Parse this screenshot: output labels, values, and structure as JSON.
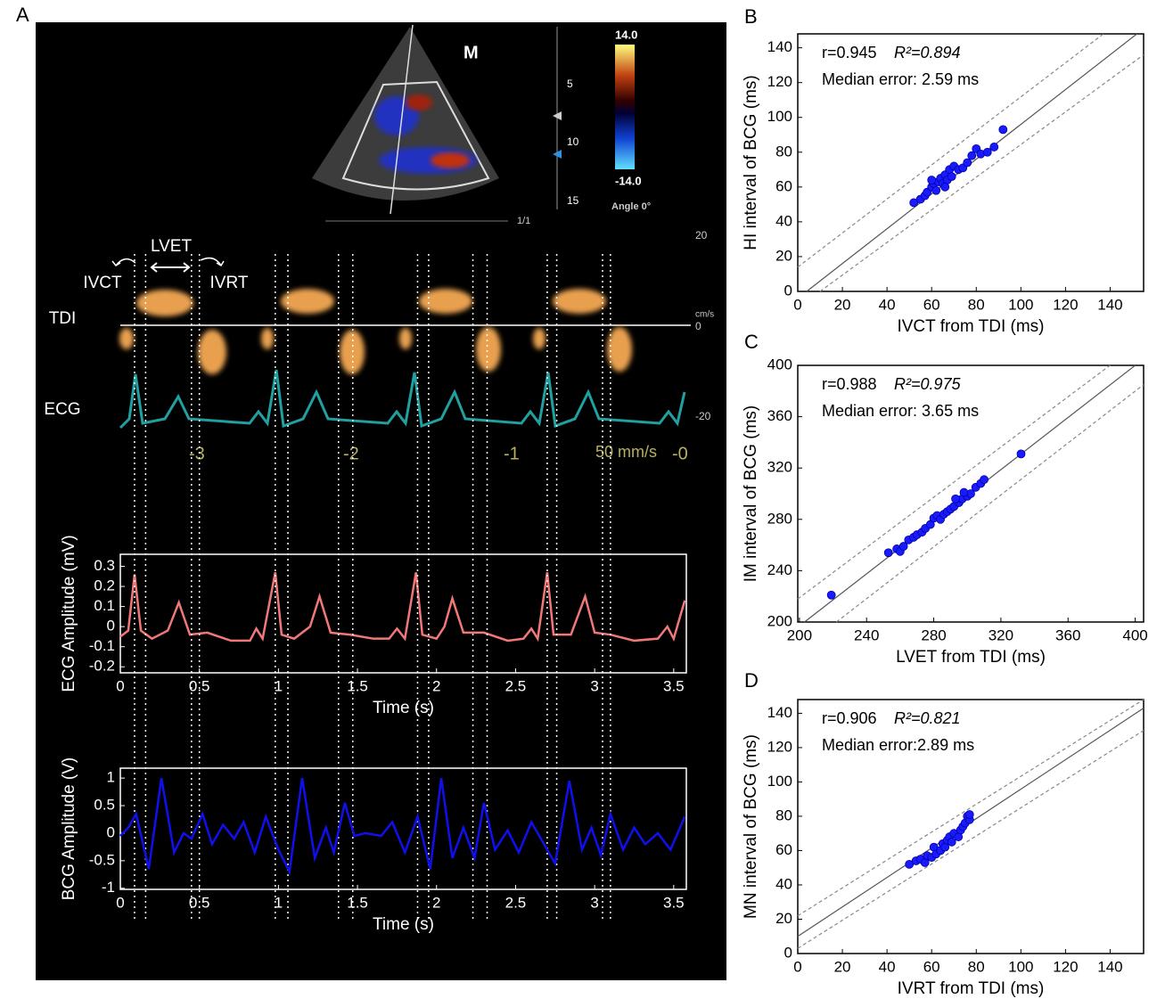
{
  "panel_labels": {
    "a": "A",
    "b": "B",
    "c": "C",
    "d": "D"
  },
  "panel_a_image": {
    "scale_top": "14.0",
    "scale_bottom": "-14.0",
    "angle": "Angle 0°",
    "logo": "M",
    "depth_ticks": [
      "5",
      "10",
      "15"
    ],
    "page": "1/1",
    "velocity_ticks": [
      "20",
      "0",
      "-20"
    ],
    "velocity_unit": "cm/s",
    "time_ticks": [
      "-3",
      "-2",
      "-1"
    ],
    "speed": "50 mm/s",
    "time_zero": "-0",
    "labels": {
      "lvet": "LVET",
      "ivct": "IVCT",
      "ivrt": "IVRT",
      "tdi": "TDI",
      "ecg": "ECG"
    }
  },
  "chart_data": [
    {
      "type": "line",
      "xlabel": "Time (s)",
      "ylabel": "ECG Amplitude (mV)",
      "xlim": [
        0,
        3.58
      ],
      "ylim": [
        -0.23,
        0.36
      ],
      "xticks": [
        0,
        0.5,
        1,
        1.5,
        2,
        2.5,
        3,
        3.5
      ],
      "yticks": [
        -0.2,
        -0.1,
        0,
        0.1,
        0.2,
        0.3
      ],
      "event_times": [
        0.09,
        0.16,
        0.45,
        0.5,
        0.98,
        1.06,
        1.38,
        1.47,
        1.88,
        1.95,
        2.23,
        2.32,
        2.7,
        2.76,
        3.05,
        3.1
      ],
      "x": [
        0,
        0.05,
        0.09,
        0.13,
        0.2,
        0.3,
        0.37,
        0.44,
        0.55,
        0.7,
        0.82,
        0.86,
        0.9,
        0.98,
        1.02,
        1.1,
        1.2,
        1.26,
        1.33,
        1.45,
        1.6,
        1.7,
        1.75,
        1.8,
        1.87,
        1.91,
        2.0,
        2.05,
        2.1,
        2.17,
        2.3,
        2.45,
        2.55,
        2.6,
        2.64,
        2.7,
        2.74,
        2.85,
        2.94,
        3.0,
        3.1,
        3.25,
        3.4,
        3.46,
        3.5,
        3.57
      ],
      "series": [
        {
          "color": "#f07878",
          "values": [
            -0.05,
            -0.02,
            0.26,
            -0.02,
            -0.06,
            -0.02,
            0.12,
            -0.04,
            -0.03,
            -0.07,
            -0.07,
            -0.01,
            -0.06,
            0.27,
            -0.04,
            -0.06,
            0.0,
            0.15,
            -0.03,
            -0.04,
            -0.06,
            -0.06,
            -0.01,
            -0.06,
            0.27,
            -0.04,
            -0.06,
            0.0,
            0.14,
            -0.03,
            -0.03,
            -0.07,
            -0.06,
            -0.01,
            -0.06,
            0.27,
            -0.04,
            -0.04,
            0.15,
            -0.03,
            -0.04,
            -0.07,
            -0.06,
            0.0,
            -0.06,
            0.13
          ]
        }
      ]
    },
    {
      "type": "line",
      "xlabel": "Time (s)",
      "ylabel": "BCG Amplitude (V)",
      "xlim": [
        0,
        3.58
      ],
      "ylim": [
        -1.02,
        1.18
      ],
      "xticks": [
        0,
        0.5,
        1,
        1.5,
        2,
        2.5,
        3,
        3.5
      ],
      "yticks": [
        -1,
        -0.5,
        0,
        0.5,
        1
      ],
      "x": [
        0,
        0.05,
        0.1,
        0.18,
        0.26,
        0.34,
        0.4,
        0.45,
        0.52,
        0.58,
        0.65,
        0.72,
        0.78,
        0.85,
        0.92,
        1.0,
        1.07,
        1.15,
        1.23,
        1.3,
        1.35,
        1.42,
        1.48,
        1.55,
        1.65,
        1.72,
        1.8,
        1.88,
        1.96,
        2.03,
        2.1,
        2.17,
        2.24,
        2.3,
        2.37,
        2.45,
        2.52,
        2.6,
        2.67,
        2.75,
        2.84,
        2.92,
        2.98,
        3.04,
        3.1,
        3.18,
        3.25,
        3.32,
        3.4,
        3.48,
        3.57
      ],
      "series": [
        {
          "color": "#1010ee",
          "values": [
            -0.05,
            0.1,
            0.35,
            -0.65,
            1.0,
            -0.35,
            0.0,
            -0.1,
            0.35,
            -0.2,
            0.15,
            -0.1,
            0.2,
            -0.35,
            0.3,
            -0.3,
            -0.7,
            1.0,
            -0.45,
            0.1,
            -0.35,
            0.55,
            -0.05,
            0.0,
            -0.05,
            0.2,
            -0.35,
            0.3,
            -0.65,
            1.0,
            -0.45,
            0.1,
            -0.45,
            0.55,
            -0.3,
            0.05,
            -0.35,
            0.2,
            -0.15,
            -0.55,
            0.95,
            -0.3,
            0.1,
            -0.4,
            0.35,
            -0.3,
            0.1,
            -0.2,
            0.0,
            -0.3,
            0.3
          ]
        }
      ]
    },
    {
      "type": "scatter",
      "xlabel": "IVCT from TDI (ms)",
      "ylabel": "HI interval of BCG (ms)",
      "r": "r=0.945",
      "r2": "R²=0.894",
      "median": "Median error: 2.59 ms",
      "xlim": [
        0,
        155
      ],
      "ylim": [
        0,
        148
      ],
      "xticks": [
        0,
        20,
        40,
        60,
        80,
        100,
        120,
        140
      ],
      "yticks": [
        0,
        20,
        40,
        60,
        80,
        100,
        120,
        140
      ],
      "x": [
        52,
        55,
        57,
        58,
        60,
        61,
        62,
        63,
        64,
        65,
        66,
        67,
        68,
        69,
        70,
        72,
        74,
        76,
        78,
        80,
        82,
        85,
        88,
        92,
        60,
        66
      ],
      "series": [
        {
          "color": "#1a1aff",
          "values": [
            51,
            53,
            55,
            57,
            60,
            62,
            58,
            63,
            65,
            62,
            67,
            64,
            70,
            66,
            72,
            70,
            71,
            74,
            78,
            82,
            79,
            80,
            83,
            93,
            64,
            60
          ]
        }
      ],
      "lines": [
        {
          "x": [
            4,
            152
          ],
          "values": [
            0,
            148
          ],
          "dashed": false
        },
        {
          "x": [
            0,
            137
          ],
          "values": [
            14,
            148
          ],
          "dashed": true
        },
        {
          "x": [
            10,
            155
          ],
          "values": [
            0,
            136
          ],
          "dashed": true
        }
      ]
    },
    {
      "type": "scatter",
      "xlabel": "LVET from TDI (ms)",
      "ylabel": "IM interval of BCG (ms)",
      "r": "r=0.988",
      "r2": "R²=0.975",
      "median": "Median error: 3.65 ms",
      "xlim": [
        199,
        405
      ],
      "ylim": [
        200,
        400
      ],
      "xticks": [
        200,
        240,
        280,
        320,
        360,
        400
      ],
      "yticks": [
        200,
        240,
        280,
        320,
        360,
        400
      ],
      "x": [
        219,
        253,
        258,
        260,
        262,
        265,
        268,
        270,
        273,
        275,
        278,
        280,
        282,
        284,
        286,
        288,
        290,
        292,
        295,
        297,
        300,
        302,
        305,
        308,
        310,
        332,
        293,
        298
      ],
      "series": [
        {
          "color": "#1a1aff",
          "values": [
            221,
            254,
            257,
            255,
            259,
            264,
            266,
            268,
            270,
            273,
            276,
            281,
            283,
            280,
            284,
            286,
            288,
            290,
            293,
            296,
            298,
            300,
            305,
            308,
            311,
            331,
            296,
            301
          ]
        }
      ],
      "lines": [
        {
          "x": [
            203,
            400
          ],
          "values": [
            200,
            400
          ],
          "dashed": false
        },
        {
          "x": [
            199,
            385
          ],
          "values": [
            218,
            400
          ],
          "dashed": true
        },
        {
          "x": [
            222,
            405
          ],
          "values": [
            200,
            385
          ],
          "dashed": true
        }
      ]
    },
    {
      "type": "scatter",
      "xlabel": "IVRT from TDI (ms)",
      "ylabel": "MN interval of BCG (ms)",
      "r": "r=0.906",
      "r2": "R²=0.821",
      "median": "Median error:2.89 ms",
      "xlim": [
        0,
        155
      ],
      "ylim": [
        0,
        148
      ],
      "xticks": [
        0,
        20,
        40,
        60,
        80,
        100,
        120,
        140
      ],
      "yticks": [
        0,
        20,
        40,
        60,
        80,
        100,
        120,
        140
      ],
      "x": [
        50,
        53,
        55,
        57,
        58,
        60,
        61,
        62,
        64,
        65,
        66,
        67,
        68,
        69,
        70,
        72,
        73,
        74,
        75,
        76,
        77,
        77
      ],
      "series": [
        {
          "color": "#1a1aff",
          "values": [
            52,
            54,
            55,
            53,
            57,
            56,
            62,
            58,
            60,
            64,
            62,
            66,
            68,
            65,
            70,
            68,
            72,
            74,
            76,
            80,
            78,
            81
          ]
        }
      ],
      "lines": [
        {
          "x": [
            0,
            155
          ],
          "values": [
            10,
            143
          ],
          "dashed": false
        },
        {
          "x": [
            0,
            155
          ],
          "values": [
            22,
            148
          ],
          "dashed": true
        },
        {
          "x": [
            0,
            155
          ],
          "values": [
            3,
            130
          ],
          "dashed": true
        }
      ]
    }
  ]
}
